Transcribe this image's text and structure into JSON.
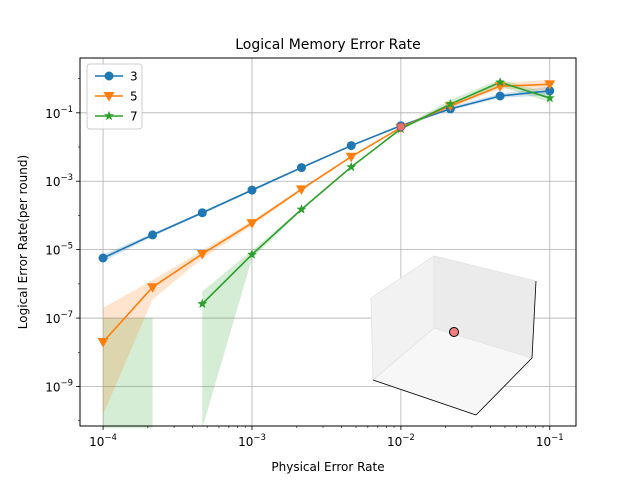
{
  "chart_data": {
    "type": "line",
    "title": "Logical Memory Error Rate",
    "xlabel": "Physical Error Rate",
    "ylabel": "Logical Error Rate(per round)",
    "xscale": "log",
    "yscale": "log",
    "xlim": [
      7e-05,
      0.15
    ],
    "ylim": [
      7e-11,
      4.0
    ],
    "grid": true,
    "legend_position": "top-left",
    "xticks": [
      {
        "value": 0.0001,
        "base": "10",
        "exp": "−4"
      },
      {
        "value": 0.001,
        "base": "10",
        "exp": "−3"
      },
      {
        "value": 0.01,
        "base": "10",
        "exp": "−2"
      },
      {
        "value": 0.1,
        "base": "10",
        "exp": "−1"
      }
    ],
    "yticks": [
      {
        "value": 1e-09,
        "base": "10",
        "exp": "−9"
      },
      {
        "value": 1e-07,
        "base": "10",
        "exp": "−7"
      },
      {
        "value": 1e-05,
        "base": "10",
        "exp": "−5"
      },
      {
        "value": 0.001,
        "base": "10",
        "exp": "−3"
      },
      {
        "value": 0.1,
        "base": "10",
        "exp": "−1"
      }
    ],
    "series": [
      {
        "name": "3",
        "color": "#1f77b4",
        "marker": "circle",
        "x": [
          0.0001,
          0.000215,
          0.000464,
          0.001,
          0.00215,
          0.00464,
          0.01,
          0.0215,
          0.0464,
          0.1
        ],
        "y": [
          5.7e-06,
          2.7e-05,
          0.00012,
          0.00055,
          0.0025,
          0.011,
          0.042,
          0.13,
          0.31,
          0.44
        ],
        "lower": [
          4.5e-06,
          2.4e-05,
          0.00011,
          0.0005,
          0.0024,
          0.0105,
          0.04,
          0.12,
          0.27,
          0.33
        ],
        "upper": [
          7.2e-06,
          3e-05,
          0.00013,
          0.0006,
          0.0026,
          0.0115,
          0.045,
          0.15,
          0.36,
          0.6
        ]
      },
      {
        "name": "5",
        "color": "#ff7f0e",
        "marker": "triangle-down",
        "x": [
          0.0001,
          0.000215,
          0.000464,
          0.001,
          0.00215,
          0.00464,
          0.01,
          0.0215,
          0.0464,
          0.1
        ],
        "y": [
          2e-08,
          8e-07,
          7.5e-06,
          6e-05,
          0.00058,
          0.0052,
          0.037,
          0.16,
          0.6,
          0.68
        ],
        "lower": [
          1.5e-10,
          3.5e-07,
          5.5e-06,
          5e-05,
          0.00053,
          0.005,
          0.035,
          0.14,
          0.5,
          0.45
        ],
        "upper": [
          2e-07,
          1.3e-06,
          9.5e-06,
          7e-05,
          0.00063,
          0.0055,
          0.04,
          0.19,
          0.75,
          0.92
        ]
      },
      {
        "name": "7",
        "color": "#2ca02c",
        "marker": "star",
        "x": [
          0.000464,
          0.001,
          0.00215,
          0.00464,
          0.01,
          0.0215,
          0.0464,
          0.1
        ],
        "y": [
          2.6e-07,
          7.2e-06,
          0.00015,
          0.0026,
          0.034,
          0.18,
          0.78,
          0.27
        ],
        "lower": [
          6e-11,
          5.5e-06,
          0.00014,
          0.0025,
          0.032,
          0.14,
          0.6,
          0.2
        ],
        "upper": [
          6e-07,
          9.5e-06,
          0.00016,
          0.0027,
          0.036,
          0.24,
          0.95,
          0.36
        ]
      }
    ],
    "green_band_left": {
      "x": [
        0.0001,
        0.000215
      ],
      "lower": [
        6e-11,
        6e-11
      ],
      "upper": [
        1e-07,
        1e-07
      ]
    },
    "highlight_point": {
      "x": 0.01,
      "y": 0.039,
      "color": "#e0766a"
    },
    "inset_point_color": "#f08080"
  }
}
